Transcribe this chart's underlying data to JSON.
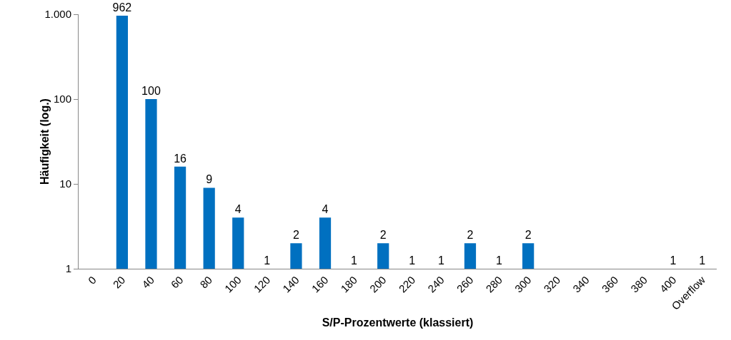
{
  "chart_data": {
    "type": "bar",
    "xlabel": "S/P-Prozentwerte (klassiert)",
    "ylabel": "Häufigkeit (log.)",
    "categories": [
      "0",
      "20",
      "40",
      "60",
      "80",
      "100",
      "120",
      "140",
      "160",
      "180",
      "200",
      "220",
      "240",
      "260",
      "280",
      "300",
      "320",
      "340",
      "360",
      "380",
      "400",
      "Overflow"
    ],
    "values": [
      null,
      962,
      100,
      16,
      9,
      4,
      1,
      2,
      4,
      1,
      2,
      1,
      1,
      2,
      1,
      2,
      null,
      null,
      null,
      null,
      1,
      1
    ],
    "color": "#0070c0",
    "log": "y",
    "ylim": [
      1,
      1000
    ],
    "yticks": [
      1,
      10,
      100,
      {
        "value": 1000,
        "label": "1.000"
      }
    ],
    "grid": false,
    "legend": false,
    "data_labels": true
  }
}
